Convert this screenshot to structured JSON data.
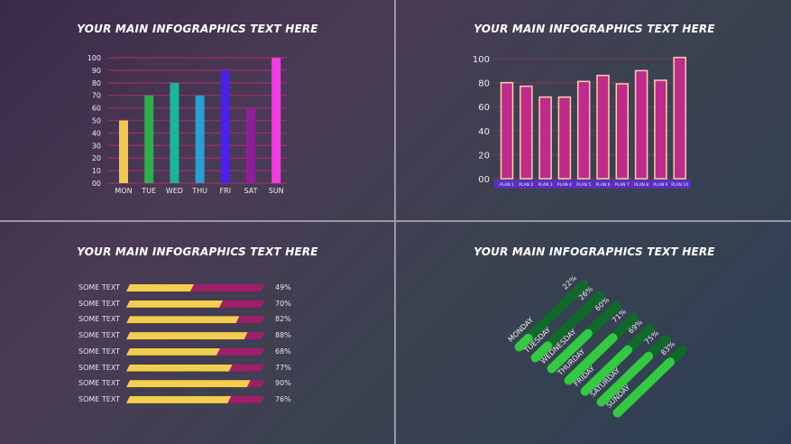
{
  "titles": [
    "YOUR MAIN INFOGRAPHICS TEXT HERE",
    "YOUR MAIN INFOGRAPHICS TEXT HERE",
    "YOUR MAIN INFOGRAPHICS TEXT HERE",
    "YOUR MAIN INFOGRAPHICS TEXT HERE"
  ],
  "chart_data": [
    {
      "type": "bar",
      "categories": [
        "MON",
        "TUE",
        "WED",
        "THU",
        "FRI",
        "SAT",
        "SUN"
      ],
      "values": [
        50,
        70,
        80,
        70,
        90,
        60,
        100
      ],
      "colors": [
        "#f2c84b",
        "#2fae4f",
        "#1ab59a",
        "#2a9fd0",
        "#4a1ff0",
        "#8e1e9a",
        "#f03ce0"
      ],
      "yticks": [
        "00",
        "10",
        "20",
        "30",
        "40",
        "50",
        "60",
        "70",
        "80",
        "90",
        "100"
      ],
      "ylim": [
        0,
        100
      ],
      "grid": true,
      "gridcolor": "#a0306e"
    },
    {
      "type": "bar",
      "categories": [
        "PLAN 1",
        "PLAN 2",
        "PLAN 3",
        "PLAN 4",
        "PLAN 5",
        "PLAN 6",
        "PLAN 7",
        "PLAN 8",
        "PLAN 9",
        "PLAN 10"
      ],
      "values": [
        80,
        77,
        68,
        68,
        81,
        86,
        79,
        90,
        82,
        101
      ],
      "color": "#c02a8a",
      "outline": "#f7d2a8",
      "yticks": [
        "00",
        "20",
        "40",
        "60",
        "80",
        "100"
      ],
      "ylim": [
        0,
        100
      ],
      "grid": true
    },
    {
      "type": "bar",
      "orientation": "horizontal",
      "categories": [
        "SOME TEXT",
        "SOME TEXT",
        "SOME TEXT",
        "SOME TEXT",
        "SOME TEXT",
        "SOME TEXT",
        "SOME TEXT",
        "SOME TEXT"
      ],
      "values": [
        49,
        70,
        82,
        88,
        68,
        77,
        90,
        76
      ],
      "labels": [
        "49%",
        "70%",
        "82%",
        "88%",
        "68%",
        "77%",
        "90%",
        "76%"
      ],
      "color": "#f4cf4e",
      "track": "#a11c6a"
    },
    {
      "type": "bar",
      "orientation": "diagonal",
      "categories": [
        "MONDAY",
        "TUESDAY",
        "WEDNESDAY",
        "THURDAY",
        "FRIDAY",
        "SATURDAY",
        "SUNDAY"
      ],
      "values": [
        22,
        26,
        60,
        71,
        69,
        75,
        83
      ],
      "labels": [
        "22%",
        "26%",
        "60%",
        "71%",
        "69%",
        "75%",
        "83%"
      ],
      "color": "#33c940",
      "track": "#0f6a2a"
    }
  ]
}
